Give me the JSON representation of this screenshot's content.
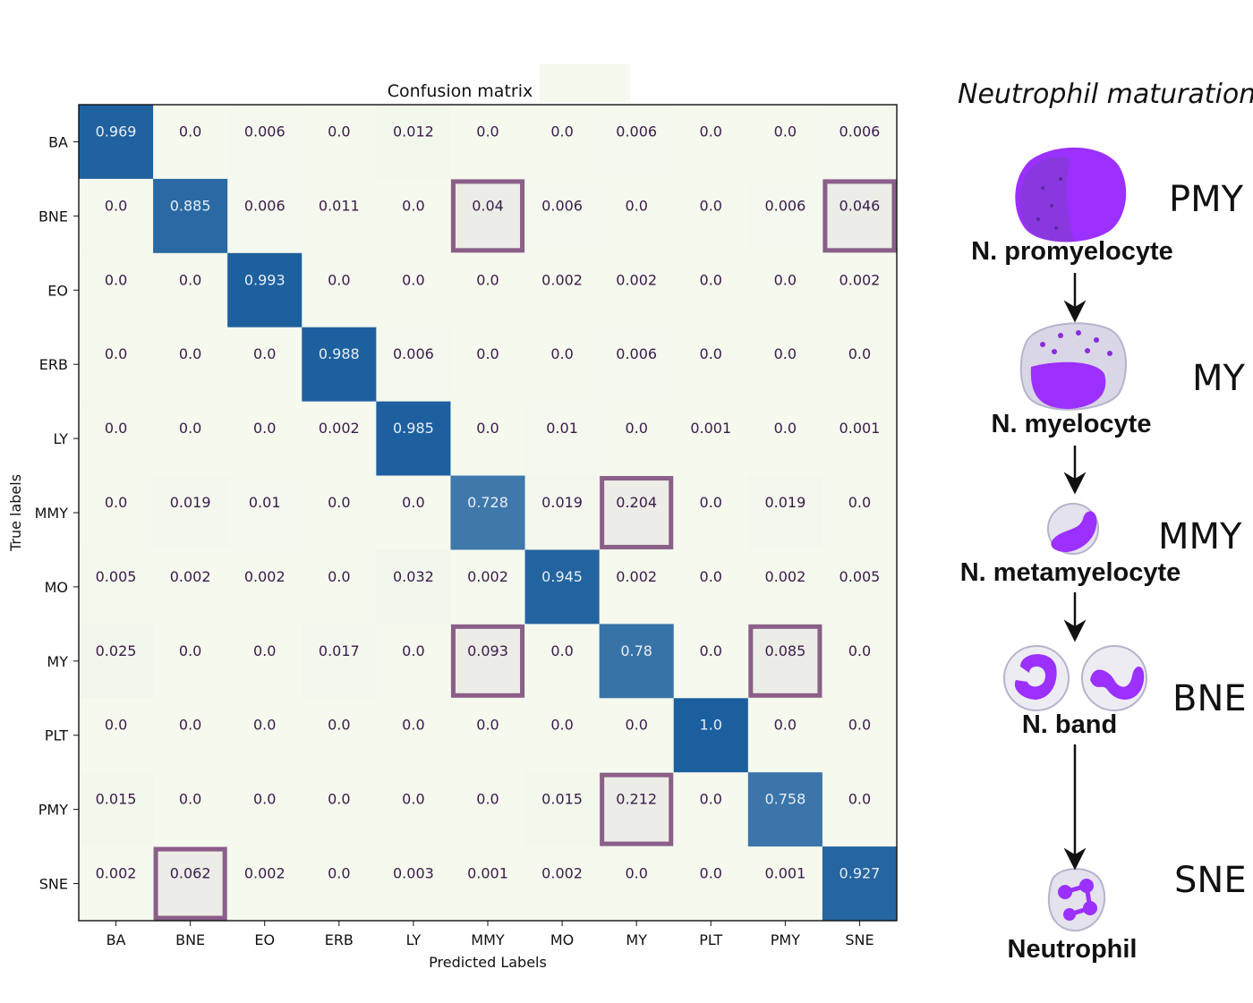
{
  "chart_data": {
    "type": "heatmap",
    "title": "Confusion matrix",
    "xlabel": "Predicted Labels",
    "ylabel": "True labels",
    "labels": [
      "BA",
      "BNE",
      "EO",
      "ERB",
      "LY",
      "MMY",
      "MO",
      "MY",
      "PLT",
      "PMY",
      "SNE"
    ],
    "matrix": [
      [
        "0.969",
        "0.0",
        "0.006",
        "0.0",
        "0.012",
        "0.0",
        "0.0",
        "0.006",
        "0.0",
        "0.0",
        "0.006"
      ],
      [
        "0.0",
        "0.885",
        "0.006",
        "0.011",
        "0.0",
        "0.04",
        "0.006",
        "0.0",
        "0.0",
        "0.006",
        "0.046"
      ],
      [
        "0.0",
        "0.0",
        "0.993",
        "0.0",
        "0.0",
        "0.0",
        "0.002",
        "0.002",
        "0.0",
        "0.0",
        "0.002"
      ],
      [
        "0.0",
        "0.0",
        "0.0",
        "0.988",
        "0.006",
        "0.0",
        "0.0",
        "0.006",
        "0.0",
        "0.0",
        "0.0"
      ],
      [
        "0.0",
        "0.0",
        "0.0",
        "0.002",
        "0.985",
        "0.0",
        "0.01",
        "0.0",
        "0.001",
        "0.0",
        "0.001"
      ],
      [
        "0.0",
        "0.019",
        "0.01",
        "0.0",
        "0.0",
        "0.728",
        "0.019",
        "0.204",
        "0.0",
        "0.019",
        "0.0"
      ],
      [
        "0.005",
        "0.002",
        "0.002",
        "0.0",
        "0.032",
        "0.002",
        "0.945",
        "0.002",
        "0.0",
        "0.002",
        "0.005"
      ],
      [
        "0.025",
        "0.0",
        "0.0",
        "0.017",
        "0.0",
        "0.093",
        "0.0",
        "0.78",
        "0.0",
        "0.085",
        "0.0"
      ],
      [
        "0.0",
        "0.0",
        "0.0",
        "0.0",
        "0.0",
        "0.0",
        "0.0",
        "0.0",
        "1.0",
        "0.0",
        "0.0"
      ],
      [
        "0.015",
        "0.0",
        "0.0",
        "0.0",
        "0.0",
        "0.0",
        "0.015",
        "0.212",
        "0.0",
        "0.758",
        "0.0"
      ],
      [
        "0.002",
        "0.062",
        "0.002",
        "0.0",
        "0.003",
        "0.001",
        "0.002",
        "0.0",
        "0.0",
        "0.001",
        "0.927"
      ]
    ],
    "highlighted_cells": [
      [
        1,
        5
      ],
      [
        1,
        10
      ],
      [
        5,
        7
      ],
      [
        7,
        5
      ],
      [
        7,
        9
      ],
      [
        9,
        7
      ],
      [
        10,
        1
      ]
    ],
    "colors": {
      "high": "#1c5f9e",
      "low": "#f5f9ee",
      "highlight_box": "#8a5f88",
      "highlight_fill": "#ecede6",
      "text_dark": "#3a1a4a",
      "text_light": "#e8eef5"
    },
    "colormap": "GnBu"
  },
  "maturation_panel": {
    "title": "Neutrophil maturation",
    "stages": [
      {
        "abbr": "PMY",
        "name": "N. promyelocyte",
        "icon": "promyelocyte-cell-icon"
      },
      {
        "abbr": "MY",
        "name": "N. myelocyte",
        "icon": "myelocyte-cell-icon"
      },
      {
        "abbr": "MMY",
        "name": "N. metamyelocyte",
        "icon": "metamyelocyte-cell-icon"
      },
      {
        "abbr": "BNE",
        "name": "N. band",
        "icon": "band-cell-icon"
      },
      {
        "abbr": "SNE",
        "name": "Neutrophil",
        "icon": "neutrophil-cell-icon"
      }
    ],
    "colors": {
      "nucleus": "#8a2be2",
      "cytoplasm": "#d9d6e6",
      "arrow": "#111111"
    }
  }
}
